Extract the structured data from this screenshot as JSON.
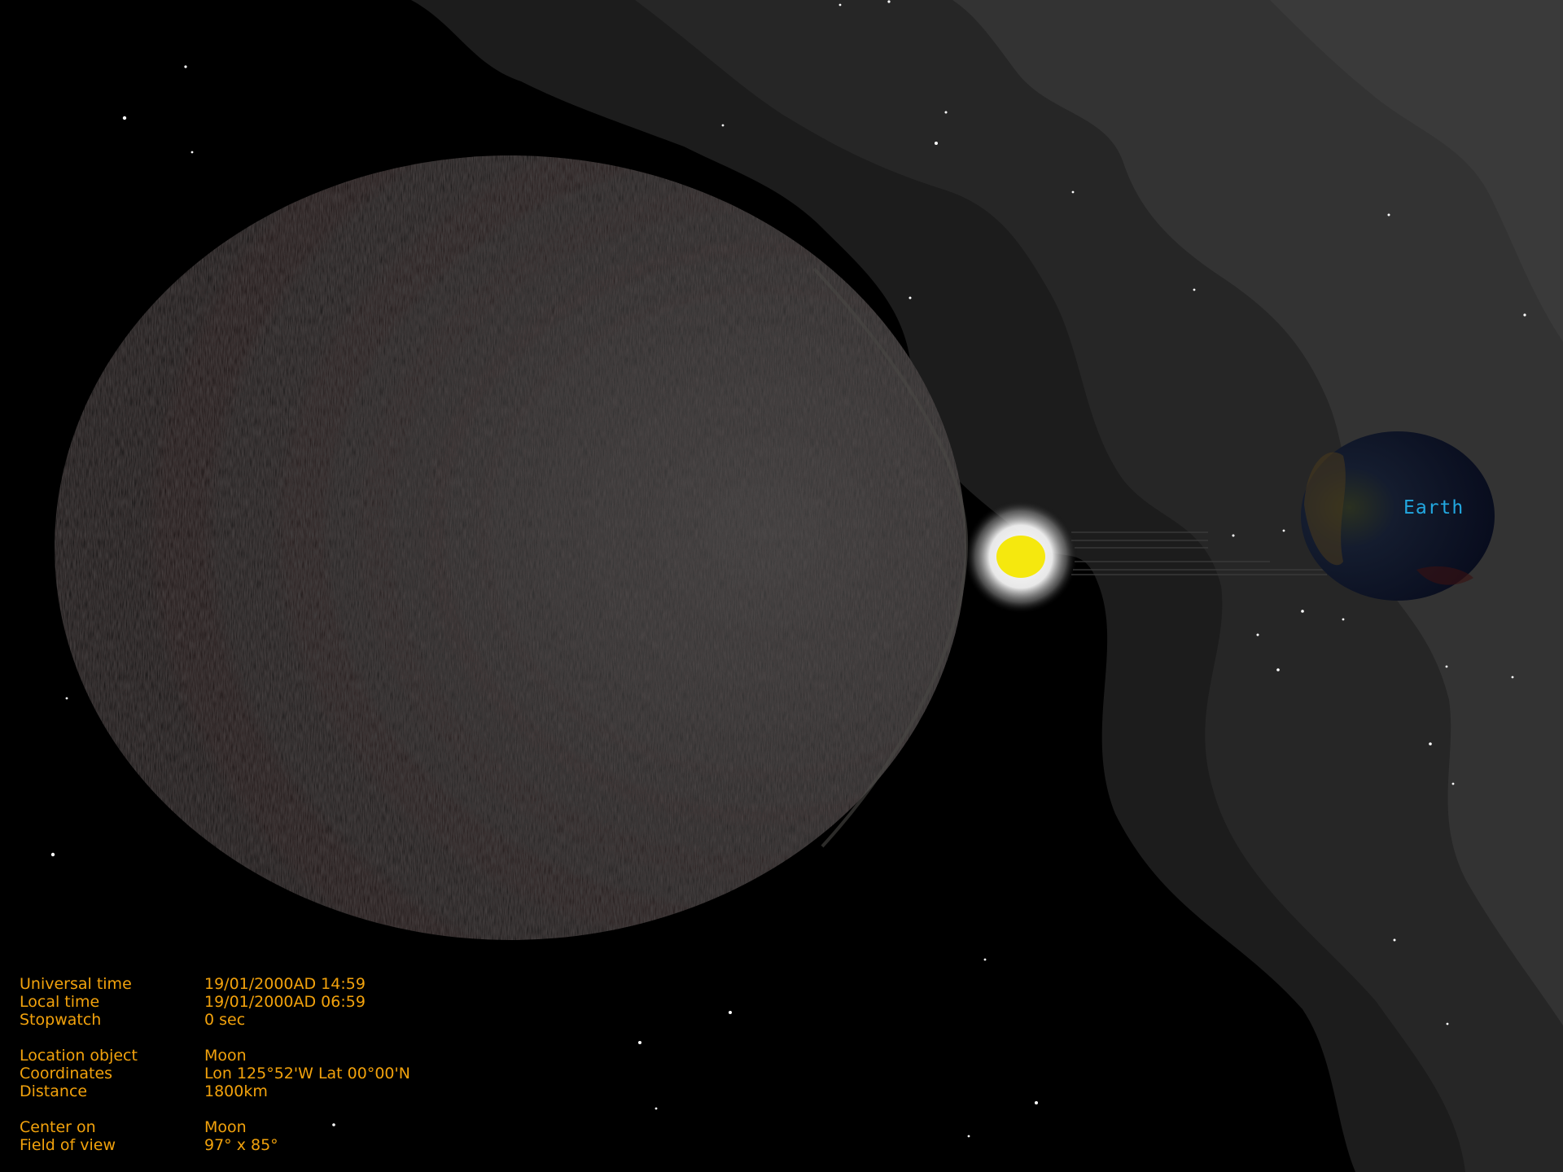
{
  "viewer": {
    "labels": {
      "earth": "Earth"
    },
    "colors": {
      "background": "#000000",
      "milky_way_outer": "#1c1c1c",
      "milky_way_mid": "#262626",
      "milky_way_inner": "#333333",
      "moon_surface": "#3a3a3a",
      "sun": "#f5e80e",
      "sun_glow": "#ffffff",
      "earth_ocean": "#0b1530",
      "label": "#22a8e0",
      "hud_text": "#f2a20c"
    },
    "icons": {
      "moon": "moon-sphere-icon",
      "sun": "sun-icon",
      "earth": "earth-globe-icon"
    }
  },
  "hud": {
    "time": {
      "universal_label": "Universal time",
      "universal_value": "19/01/2000AD 14:59",
      "local_label": "Local time",
      "local_value": "19/01/2000AD 06:59",
      "stopwatch_label": "Stopwatch",
      "stopwatch_value": "0 sec"
    },
    "location": {
      "object_label": "Location object",
      "object_value": "Moon",
      "coords_label": "Coordinates",
      "coords_value": "Lon 125°52'W Lat 00°00'N",
      "distance_label": "Distance",
      "distance_value": "1800km"
    },
    "view": {
      "center_label": "Center on",
      "center_value": "Moon",
      "fov_label": "Field of view",
      "fov_value": "97° x 85°"
    }
  }
}
